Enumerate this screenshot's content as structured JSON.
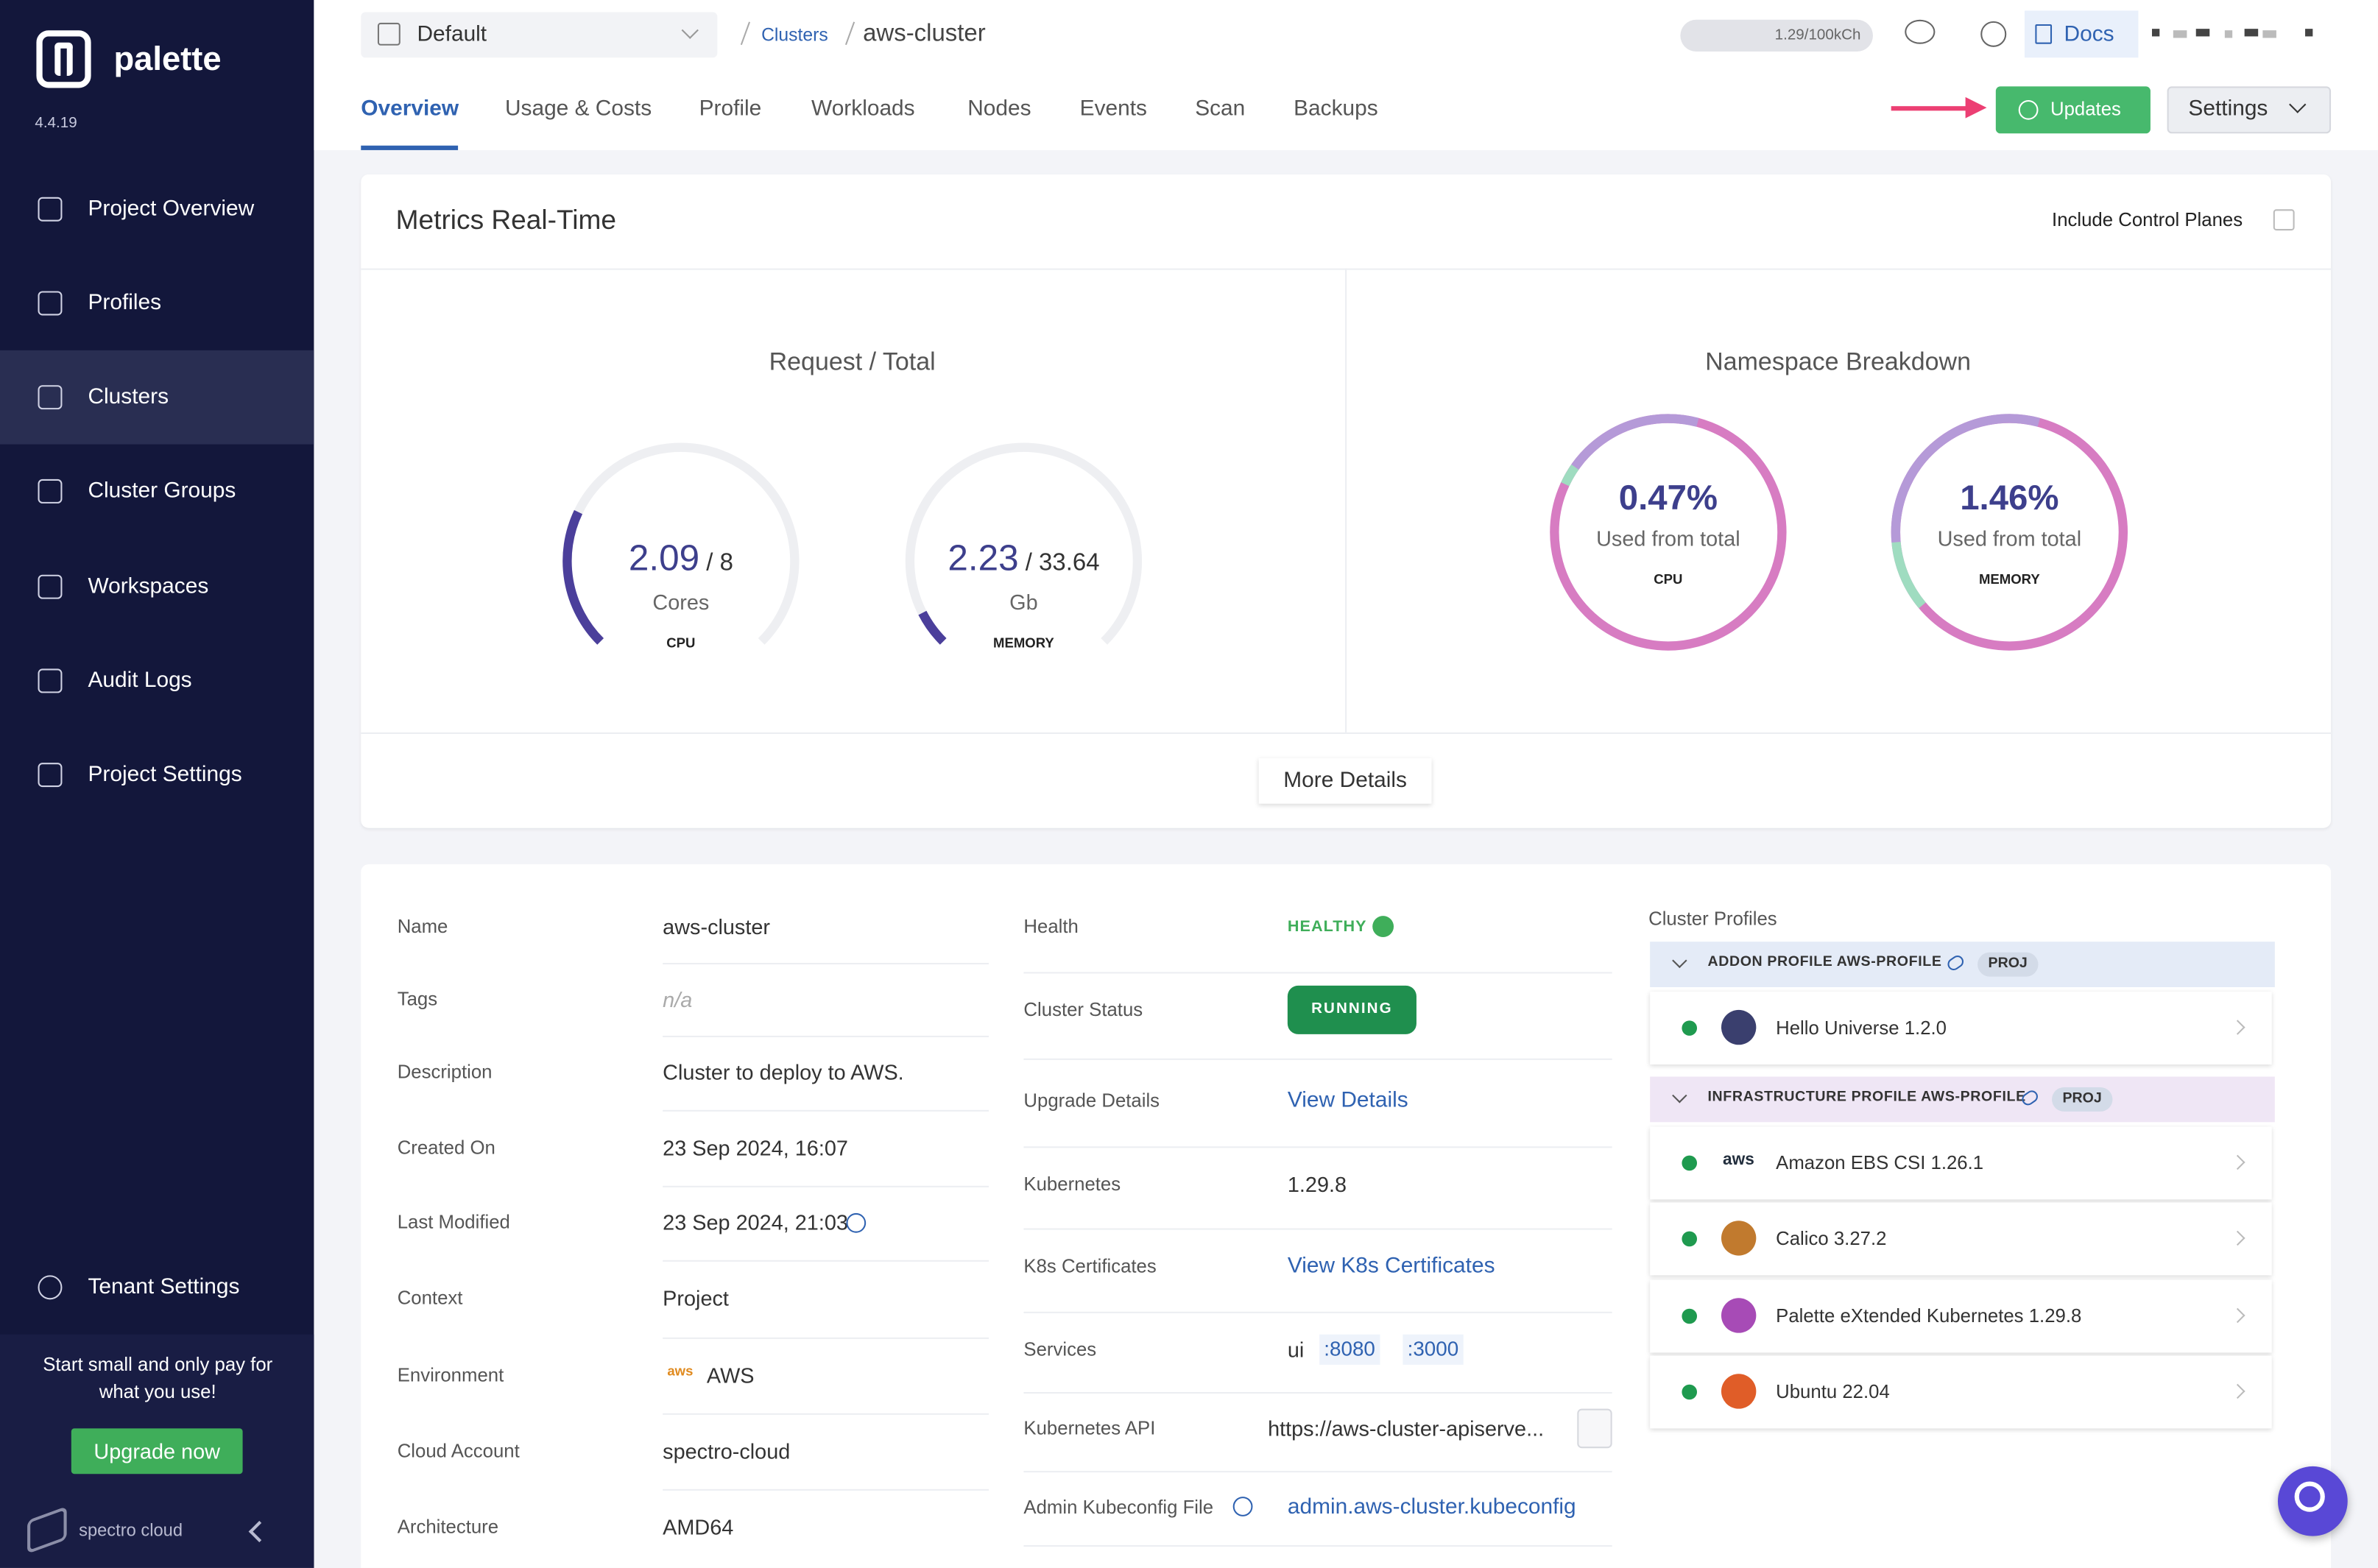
{
  "sidebar": {
    "brand": "palette",
    "version": "4.4.19",
    "nav": [
      "Project Overview",
      "Profiles",
      "Clusters",
      "Cluster Groups",
      "Workspaces",
      "Audit Logs",
      "Project Settings"
    ],
    "active_nav": 2,
    "tenant_settings": "Tenant Settings",
    "promo": "Start small and only pay for what you use!",
    "upgrade": "Upgrade now",
    "company": "spectro cloud"
  },
  "header": {
    "project": "Default",
    "breadcrumb": {
      "parent": "Clusters",
      "current": "aws-cluster"
    },
    "usage": "1.29/100kCh",
    "docs": "Docs",
    "tabs": [
      "Overview",
      "Usage & Costs",
      "Profile",
      "Workloads",
      "Nodes",
      "Events",
      "Scan",
      "Backups"
    ],
    "active_tab": 0,
    "updates": "Updates",
    "settings": "Settings"
  },
  "metrics": {
    "title": "Metrics Real-Time",
    "include_control_planes": "Include Control Planes",
    "request_total": {
      "title": "Request / Total",
      "gauges": [
        {
          "used": 2.09,
          "total": 8,
          "total_label": "/ 8",
          "unit": "Cores",
          "label": "CPU"
        },
        {
          "used": 2.23,
          "total": 33.64,
          "total_label": "/ 33.64",
          "unit": "Gb",
          "label": "MEMORY"
        }
      ]
    },
    "namespace": {
      "title": "Namespace Breakdown",
      "donuts": [
        {
          "value": "0.47%",
          "caption": "Used from total",
          "label": "CPU"
        },
        {
          "value": "1.46%",
          "caption": "Used from total",
          "label": "MEMORY"
        }
      ]
    },
    "more_details": "More Details"
  },
  "details": {
    "overview": [
      {
        "label": "Name",
        "value": "aws-cluster"
      },
      {
        "label": "Tags",
        "value": "n/a"
      },
      {
        "label": "Description",
        "value": "Cluster to deploy to AWS."
      },
      {
        "label": "Created On",
        "value": "23 Sep 2024, 16:07"
      },
      {
        "label": "Last Modified",
        "value": "23 Sep 2024, 21:03"
      },
      {
        "label": "Context",
        "value": "Project"
      },
      {
        "label": "Environment",
        "value": "AWS",
        "logo": "aws"
      },
      {
        "label": "Cloud Account",
        "value": "spectro-cloud"
      },
      {
        "label": "Architecture",
        "value": "AMD64"
      }
    ],
    "status": [
      {
        "label": "Health",
        "value": "HEALTHY",
        "kind": "health"
      },
      {
        "label": "Cluster Status",
        "value": "RUNNING",
        "kind": "badge"
      },
      {
        "label": "Upgrade Details",
        "value": "View Details",
        "kind": "link"
      },
      {
        "label": "Kubernetes",
        "value": "1.29.8",
        "kind": "text"
      },
      {
        "label": "K8s Certificates",
        "value": "View K8s Certificates",
        "kind": "link"
      },
      {
        "label": "Services",
        "value": "ui",
        "ports": [
          ":8080",
          ":3000"
        ],
        "kind": "services"
      },
      {
        "label": "Kubernetes API",
        "value": "https://aws-cluster-apiserve...",
        "kind": "copy"
      },
      {
        "label": "Admin Kubeconfig File",
        "value": "admin.aws-cluster.kubeconfig",
        "kind": "link"
      }
    ],
    "cluster_profiles": {
      "title": "Cluster Profiles",
      "groups": [
        {
          "name": "ADDON PROFILE AWS-PROFILE",
          "scope": "PROJ",
          "packs": [
            {
              "name": "Hello Universe 1.2.0"
            }
          ]
        },
        {
          "name": "INFRASTRUCTURE PROFILE AWS-PROFILE",
          "scope": "PROJ",
          "packs": [
            {
              "name": "Amazon EBS CSI 1.26.1",
              "logo": "aws"
            },
            {
              "name": "Calico 3.27.2"
            },
            {
              "name": "Palette eXtended Kubernetes 1.29.8"
            },
            {
              "name": "Ubuntu 22.04"
            }
          ]
        }
      ]
    }
  }
}
